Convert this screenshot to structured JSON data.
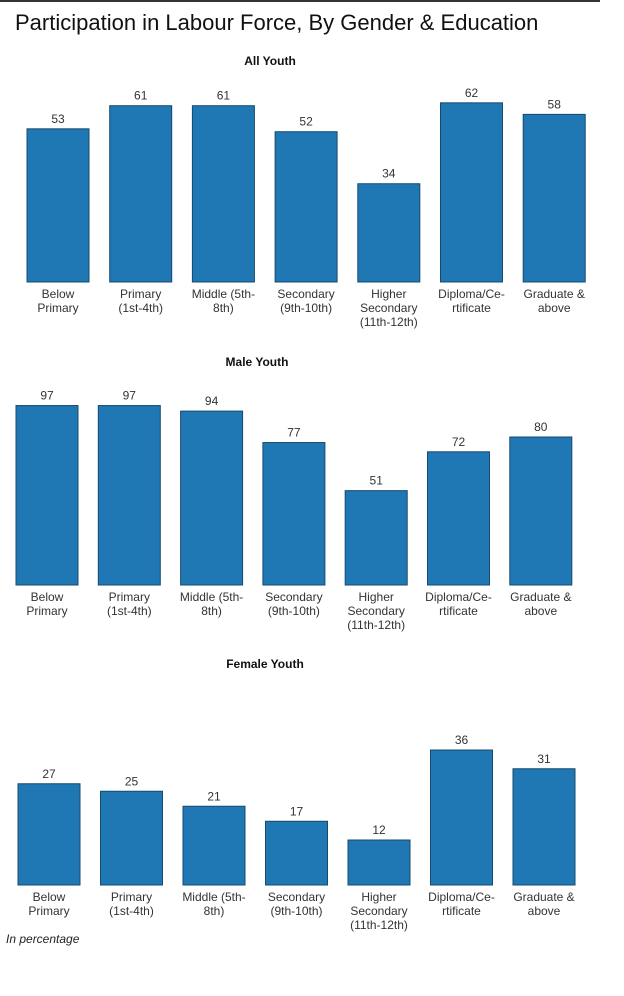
{
  "page_title": "Participation in Labour Force, By Gender & Education",
  "note": "In percentage",
  "bar_color": "#1f77b4",
  "chart_data": [
    {
      "type": "bar",
      "title": "All Youth",
      "categories": [
        [
          "Below",
          "Primary"
        ],
        [
          "Primary",
          "(1st-4th)"
        ],
        [
          "Middle (5th-",
          "8th)"
        ],
        [
          "Secondary",
          "(9th-10th)"
        ],
        [
          "Higher",
          "Secondary",
          "(11th-12th)"
        ],
        [
          "Diploma/Ce-",
          "rtificate"
        ],
        [
          "Graduate &",
          "above"
        ]
      ],
      "values": [
        53,
        61,
        61,
        52,
        34,
        62,
        58
      ]
    },
    {
      "type": "bar",
      "title": "Male Youth",
      "categories": [
        [
          "Below",
          "Primary"
        ],
        [
          "Primary",
          "(1st-4th)"
        ],
        [
          "Middle (5th-",
          "8th)"
        ],
        [
          "Secondary",
          "(9th-10th)"
        ],
        [
          "Higher",
          "Secondary",
          "(11th-12th)"
        ],
        [
          "Diploma/Ce-",
          "rtificate"
        ],
        [
          "Graduate &",
          "above"
        ]
      ],
      "values": [
        97,
        97,
        94,
        77,
        51,
        72,
        80
      ]
    },
    {
      "type": "bar",
      "title": "Female Youth",
      "categories": [
        [
          "Below",
          "Primary"
        ],
        [
          "Primary",
          "(1st-4th)"
        ],
        [
          "Middle (5th-",
          "8th)"
        ],
        [
          "Secondary",
          "(9th-10th)"
        ],
        [
          "Higher",
          "Secondary",
          "(11th-12th)"
        ],
        [
          "Diploma/Ce-",
          "rtificate"
        ],
        [
          "Graduate &",
          "above"
        ]
      ],
      "values": [
        27,
        25,
        21,
        17,
        12,
        36,
        31
      ]
    }
  ]
}
